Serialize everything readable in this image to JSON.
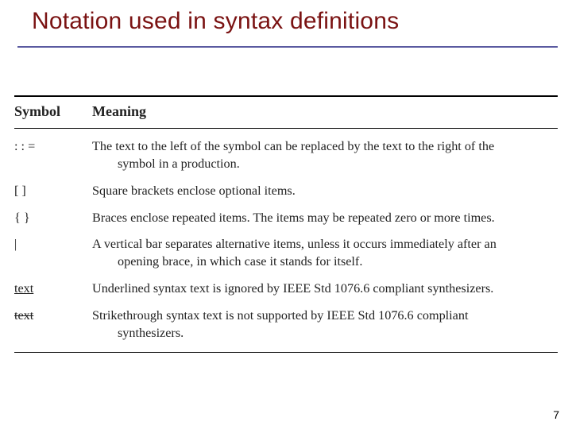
{
  "colors": {
    "title": "#7a1212",
    "rule": "#5a5aa0",
    "text": "#222222",
    "background": "#ffffff"
  },
  "title": "Notation used in syntax definitions",
  "page_number": "7",
  "table": {
    "header": {
      "symbol": "Symbol",
      "meaning": "Meaning"
    },
    "rows": [
      {
        "symbol": ": : =",
        "symbol_style": "plain",
        "meaning_line1": "The text to the left of the symbol can be replaced by the text to the right of the",
        "meaning_line2": "symbol in a production."
      },
      {
        "symbol": "[ ]",
        "symbol_style": "plain",
        "meaning_line1": "Square brackets enclose optional items.",
        "meaning_line2": ""
      },
      {
        "symbol": "{ }",
        "symbol_style": "plain",
        "meaning_line1": "Braces enclose repeated items. The items may be repeated zero or more times.",
        "meaning_line2": ""
      },
      {
        "symbol": "|",
        "symbol_style": "plain",
        "meaning_line1": "A vertical bar separates alternative items, unless it occurs immediately after an",
        "meaning_line2": "opening brace, in which case it stands for itself."
      },
      {
        "symbol": "text",
        "symbol_style": "underline",
        "meaning_line1": "Underlined syntax text is ignored by IEEE Std 1076.6 compliant synthesizers.",
        "meaning_line2": ""
      },
      {
        "symbol": "text",
        "symbol_style": "strike",
        "meaning_line1": "Strikethrough syntax text is not supported by IEEE Std 1076.6 compliant",
        "meaning_line2": "synthesizers."
      }
    ]
  }
}
